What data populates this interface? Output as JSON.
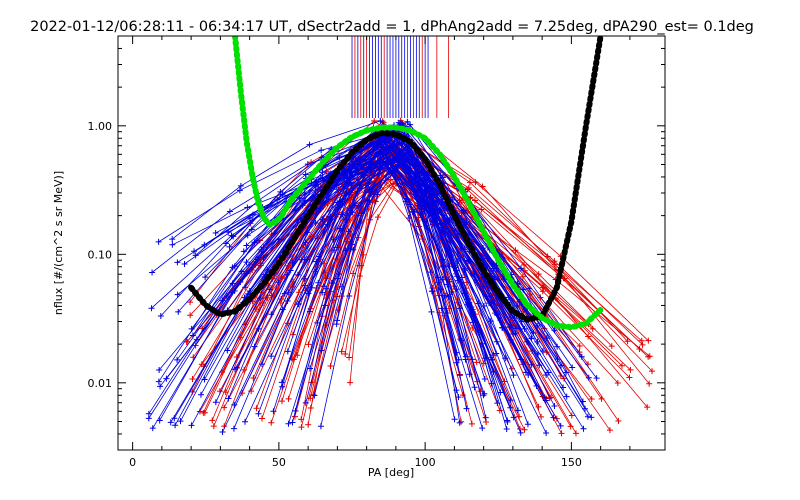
{
  "chart_data": {
    "type": "line",
    "title": "2022-01-12/06:28:11 - 06:34:17 UT, dSectr2add = 1, dPhAng2add = 7.25deg, dPA290_est=   0.1deg",
    "xlabel": "PA [deg]",
    "ylabel": "nflux [#/(cm^2 s sr MeV)]",
    "xlim": [
      -5,
      182
    ],
    "ylim": [
      0.003,
      5.0
    ],
    "yscale": "log",
    "grid": false,
    "xticks": [
      {
        "value": 0,
        "label": "0"
      },
      {
        "value": 50,
        "label": "50"
      },
      {
        "value": 100,
        "label": "100"
      },
      {
        "value": 150,
        "label": "150"
      }
    ],
    "yticks": [
      {
        "value": 0.01,
        "label": "0.01"
      },
      {
        "value": 0.1,
        "label": "0.10"
      },
      {
        "value": 1.0,
        "label": "1.00"
      }
    ],
    "colors": {
      "red_traces": "#e00000",
      "blue_traces": "#0000e0",
      "black_fit": "#000000",
      "green_fit": "#00e000"
    },
    "traces": {
      "red": {
        "count": 60,
        "seed": 17,
        "x_left": [
          18,
          75
        ],
        "peak_x": [
          82,
          92
        ],
        "x_right": [
          108,
          178
        ],
        "left_y": [
          0.004,
          0.05
        ],
        "right_y": [
          0.004,
          0.03
        ],
        "peak_y": [
          0.35,
          1.1
        ]
      },
      "blue": {
        "count": 90,
        "seed": 23,
        "x_left": [
          4,
          70
        ],
        "peak_x": [
          84,
          95
        ],
        "x_right": [
          110,
          160
        ],
        "left_y": [
          0.004,
          0.15
        ],
        "right_y": [
          0.004,
          0.03
        ],
        "peak_y": [
          0.5,
          1.1
        ]
      }
    },
    "spikes": {
      "red": [
        76,
        78,
        80,
        86,
        94,
        96,
        99,
        104,
        108
      ],
      "blue": [
        75,
        77,
        79,
        81,
        82,
        83,
        84,
        85,
        87,
        88,
        89,
        90,
        91,
        92,
        93,
        95,
        97,
        98,
        100,
        101
      ],
      "y_from": 1.15,
      "y_to": 5.0
    },
    "series": [
      {
        "color": "black",
        "x": [
          20,
          25,
          30,
          35,
          40,
          45,
          50,
          55,
          60,
          65,
          70,
          75,
          80,
          85,
          90,
          95,
          100,
          105,
          110,
          115,
          120,
          125,
          130,
          135,
          140,
          145,
          150,
          155,
          160
        ],
        "y": [
          0.055,
          0.04,
          0.034,
          0.036,
          0.045,
          0.06,
          0.085,
          0.13,
          0.2,
          0.3,
          0.45,
          0.62,
          0.78,
          0.88,
          0.86,
          0.75,
          0.55,
          0.35,
          0.2,
          0.12,
          0.075,
          0.05,
          0.036,
          0.031,
          0.033,
          0.055,
          0.18,
          1.0,
          5.0
        ]
      },
      {
        "color": "green",
        "x": [
          35,
          37,
          39,
          41,
          43,
          45,
          47,
          49,
          51,
          53,
          55,
          60,
          65,
          70,
          75,
          80,
          85,
          90,
          95,
          100,
          105,
          110,
          115,
          120,
          125,
          130,
          135,
          140,
          145,
          150,
          155,
          160
        ],
        "y": [
          5.0,
          1.8,
          0.75,
          0.4,
          0.25,
          0.19,
          0.17,
          0.18,
          0.2,
          0.24,
          0.28,
          0.38,
          0.52,
          0.68,
          0.82,
          0.92,
          0.97,
          0.97,
          0.92,
          0.8,
          0.6,
          0.4,
          0.25,
          0.15,
          0.09,
          0.058,
          0.04,
          0.032,
          0.028,
          0.027,
          0.029,
          0.037
        ]
      }
    ]
  }
}
